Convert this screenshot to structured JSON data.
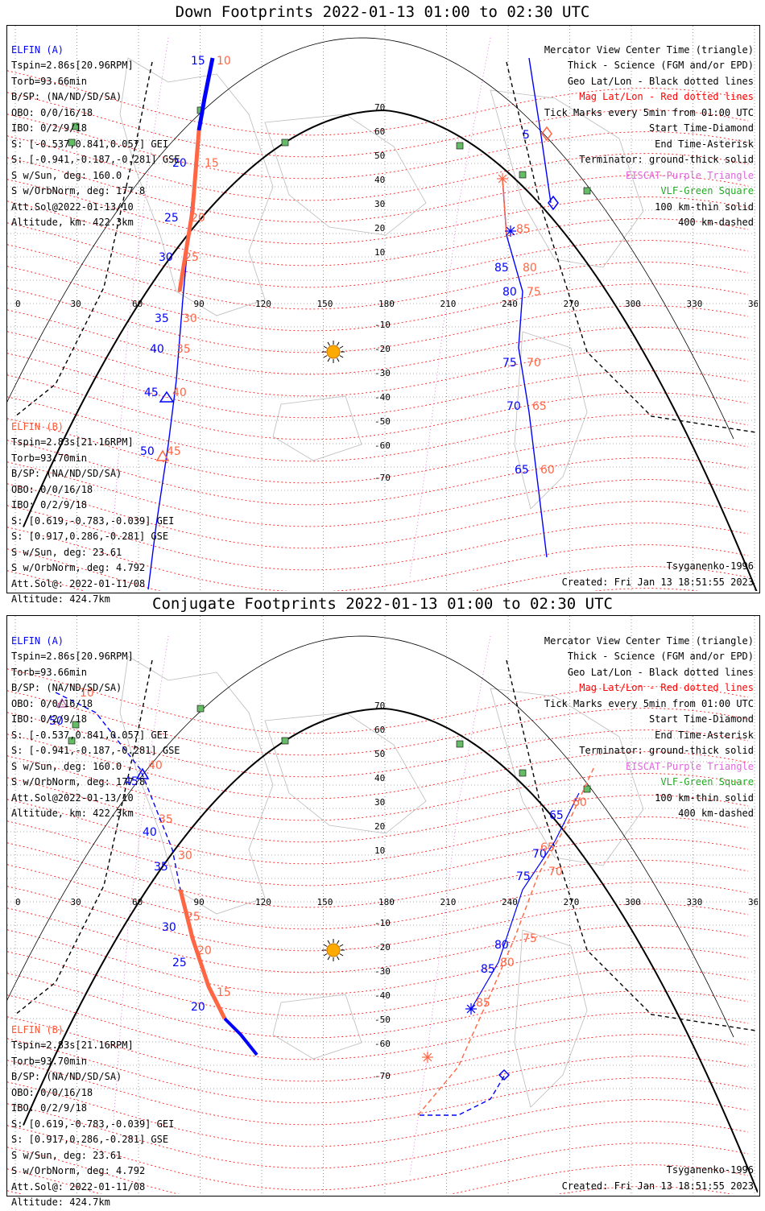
{
  "panels": [
    {
      "title": "Down Footprints 2022-01-13 01:00 to 02:30 UTC",
      "elfin_a": {
        "name": "ELFIN (A)",
        "tspin": "Tspin=2.86s[20.96RPM]",
        "torb": "Torb=93.66min",
        "bsp": "B/SP: (NA/ND/SD/SA)",
        "obo": "OBO: 0/0/16/18",
        "ibo": "IBO: 0/2/9/18",
        "s_gei": "S: [-0.537,0.841,0.057] GEI",
        "s_gse": "S: [-0.941,-0.187,-0.281] GSE",
        "sw_sun": "S w/Sun, deg: 160.0",
        "sw_orb": "S w/OrbNorm, deg: 177.8",
        "att": "Att.Sol@2022-01-13/10",
        "alt": "Altitude, km: 422.3km"
      },
      "elfin_b": {
        "name": "ELFIN (B)",
        "tspin": "Tspin=2.83s[21.16RPM]",
        "torb": "Torb=93.70min",
        "bsp": "B/SP: (NA/ND/SD/SA)",
        "obo": "OBO: 0/0/16/18",
        "ibo": "IBO: 0/2/9/18",
        "s_gei": "S: [0.619,-0.783,-0.039] GEI",
        "s_gse": "S: [0.917,0.286,-0.281] GSE",
        "sw_sun": "S w/Sun, deg: 23.61",
        "sw_orb": "S w/OrbNorm, deg: 4.792",
        "att": "Att.Sol@: 2022-01-11/08",
        "alt": "Altitude: 424.7km"
      },
      "legend": {
        "l1": "Mercator View Center Time (triangle)",
        "l2": "Thick - Science (FGM and/or EPD)",
        "l3": "Geo Lat/Lon - Black dotted lines",
        "l4": "Mag Lat/Lon - Red dotted lines",
        "l5": "Tick Marks every 5min from 01:00 UTC",
        "l6": "Start Time-Diamond",
        "l7": "End Time-Asterisk",
        "l8": "Terminator: ground-thick solid",
        "l9": "EISCAT-Purple Triangle",
        "l10": "VLF-Green Square",
        "l11": "100 km-thin solid",
        "l12": "400 km-dashed"
      },
      "model": "Tsyganenko-1996",
      "created": "Created: Fri Jan 13 18:51:55 2023",
      "lon_ticks": [
        "0",
        "30",
        "60",
        "90",
        "120",
        "150",
        "180",
        "210",
        "240",
        "270",
        "300",
        "330",
        "360"
      ],
      "lat_ticks": [
        "70",
        "60",
        "50",
        "40",
        "30",
        "20",
        "10",
        "-10",
        "-20",
        "-30",
        "-40",
        "-50",
        "-60",
        "-70"
      ],
      "track_labels_a": [
        "15",
        "20",
        "25",
        "30",
        "35",
        "40",
        "45",
        "50",
        "5",
        "85",
        "80",
        "75",
        "70",
        "65"
      ],
      "track_labels_b": [
        "10",
        "15",
        "20",
        "25",
        "30",
        "35",
        "40",
        "45",
        "85",
        "80",
        "75",
        "70",
        "65",
        "60"
      ]
    },
    {
      "title": "Conjugate Footprints 2022-01-13 01:00 to 02:30 UTC",
      "elfin_a": {
        "name": "ELFIN (A)",
        "tspin": "Tspin=2.86s[20.96RPM]",
        "torb": "Torb=93.66min",
        "bsp": "B/SP: (NA/ND/SD/SA)",
        "obo": "OBO: 0/0/16/18",
        "ibo": "IBO: 0/2/9/18",
        "s_gei": "S: [-0.537,0.841,0.057] GEI",
        "s_gse": "S: [-0.941,-0.187,-0.281] GSE",
        "sw_sun": "S w/Sun, deg: 160.0",
        "sw_orb": "S w/OrbNorm, deg: 177.8",
        "att": "Att.Sol@2022-01-13/10",
        "alt": "Altitude, km: 422.3km"
      },
      "elfin_b": {
        "name": "ELFIN (B)",
        "tspin": "Tspin=2.83s[21.16RPM]",
        "torb": "Torb=93.70min",
        "bsp": "B/SP: (NA/ND/SD/SA)",
        "obo": "OBO: 0/0/16/18",
        "ibo": "IBO: 0/2/9/18",
        "s_gei": "S: [0.619,-0.783,-0.039] GEI",
        "s_gse": "S: [0.917,0.286,-0.281] GSE",
        "sw_sun": "S w/Sun, deg: 23.61",
        "sw_orb": "S w/OrbNorm, deg: 4.792",
        "att": "Att.Sol@: 2022-01-11/08",
        "alt": "Altitude: 424.7km"
      },
      "legend": {
        "l1": "Mercator View Center Time (triangle)",
        "l2": "Thick - Science (FGM and/or EPD)",
        "l3": "Geo Lat/Lon - Black dotted lines",
        "l4": "Mag Lat/Lon - Red dotted lines",
        "l5": "Tick Marks every 5min from 01:00 UTC",
        "l6": "Start Time-Diamond",
        "l7": "End Time-Asterisk",
        "l8": "Terminator: ground-thick solid",
        "l9": "EISCAT-Purple Triangle",
        "l10": "VLF-Green Square",
        "l11": "100 km-thin solid",
        "l12": "400 km-dashed"
      },
      "model": "Tsyganenko-1996",
      "created": "Created: Fri Jan 13 18:51:55 2023",
      "lon_ticks": [
        "0",
        "30",
        "60",
        "90",
        "120",
        "150",
        "180",
        "210",
        "240",
        "270",
        "300",
        "330",
        "360"
      ],
      "lat_ticks": [
        "70",
        "60",
        "50",
        "40",
        "30",
        "20",
        "10",
        "-10",
        "-20",
        "-30",
        "-40",
        "-50",
        "-60",
        "-70"
      ],
      "track_labels_a": [
        "50",
        "45",
        "40",
        "35",
        "30",
        "25",
        "20",
        "85",
        "80",
        "75",
        "70",
        "65"
      ],
      "track_labels_b": [
        "10",
        "40",
        "35",
        "30",
        "25",
        "20",
        "15",
        "85",
        "80",
        "75",
        "70",
        "65",
        "60"
      ]
    }
  ],
  "colors": {
    "elfin_a": "#0000ff",
    "elfin_b": "#ff6644",
    "mag_grid": "#ff0000",
    "eiscat": "#dd66dd",
    "vlf": "#22aa22",
    "sun": "#ffaa00"
  },
  "icons": {
    "sun": "sun-icon",
    "start": "diamond-icon",
    "end": "asterisk-icon",
    "center": "triangle-icon",
    "vlf": "square-icon"
  }
}
